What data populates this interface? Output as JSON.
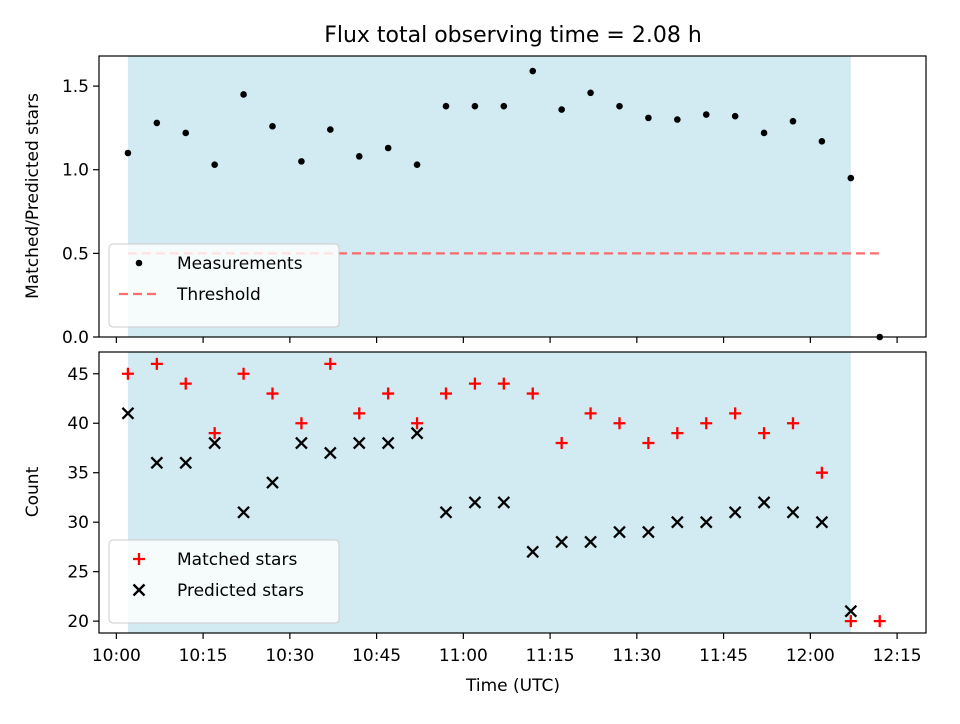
{
  "chart_data": {
    "title": "Flux total observing time = 2.08 h",
    "xlabel": "Time (UTC)",
    "xticks": [
      "10:00",
      "10:15",
      "10:30",
      "10:45",
      "11:00",
      "11:15",
      "11:30",
      "11:45",
      "12:00",
      "12:15"
    ],
    "xlim": [
      "09:57",
      "12:20"
    ],
    "shaded_interval": [
      "10:02",
      "12:07"
    ],
    "shade_color": "#add8e6",
    "x": [
      "10:02",
      "10:07",
      "10:12",
      "10:17",
      "10:22",
      "10:27",
      "10:32",
      "10:37",
      "10:42",
      "10:47",
      "10:52",
      "10:57",
      "11:02",
      "11:07",
      "11:12",
      "11:17",
      "11:22",
      "11:27",
      "11:32",
      "11:37",
      "11:42",
      "11:47",
      "11:52",
      "11:57",
      "12:02",
      "12:07",
      "12:12"
    ],
    "panels": [
      {
        "type": "scatter",
        "ylabel": "Matched/Predicted stars",
        "ylim": [
          0,
          1.68
        ],
        "yticks": [
          "0.0",
          "0.5",
          "1.0",
          "1.5"
        ],
        "legend_position": "lower left",
        "series": [
          {
            "name": "Measurements",
            "marker": "dot",
            "color": "#000000",
            "values": [
              1.1,
              1.28,
              1.22,
              1.03,
              1.45,
              1.26,
              1.05,
              1.24,
              1.08,
              1.13,
              1.03,
              1.38,
              1.38,
              1.38,
              1.59,
              1.36,
              1.46,
              1.38,
              1.31,
              1.3,
              1.33,
              1.32,
              1.22,
              1.29,
              1.17,
              0.95,
              0.0
            ]
          }
        ],
        "threshold": {
          "name": "Threshold",
          "value": 0.5,
          "from": "10:02",
          "to": "12:12",
          "color": "#ff5555",
          "style": "dashed"
        }
      },
      {
        "type": "scatter",
        "ylabel": "Count",
        "ylim": [
          18.8,
          47.2
        ],
        "yticks": [
          "20",
          "25",
          "30",
          "35",
          "40",
          "45"
        ],
        "legend_position": "lower left",
        "series": [
          {
            "name": "Matched stars",
            "marker": "plus",
            "color": "#ff0000",
            "values": [
              45,
              46,
              44,
              39,
              45,
              43,
              40,
              46,
              41,
              43,
              40,
              43,
              44,
              44,
              43,
              38,
              41,
              40,
              38,
              39,
              40,
              41,
              39,
              40,
              35,
              20,
              20
            ]
          },
          {
            "name": "Predicted stars",
            "marker": "x",
            "color": "#000000",
            "values": [
              41,
              36,
              36,
              38,
              31,
              34,
              38,
              37,
              38,
              38,
              39,
              31,
              32,
              32,
              27,
              28,
              28,
              29,
              29,
              30,
              30,
              31,
              32,
              31,
              30,
              21,
              null
            ]
          }
        ]
      }
    ]
  }
}
